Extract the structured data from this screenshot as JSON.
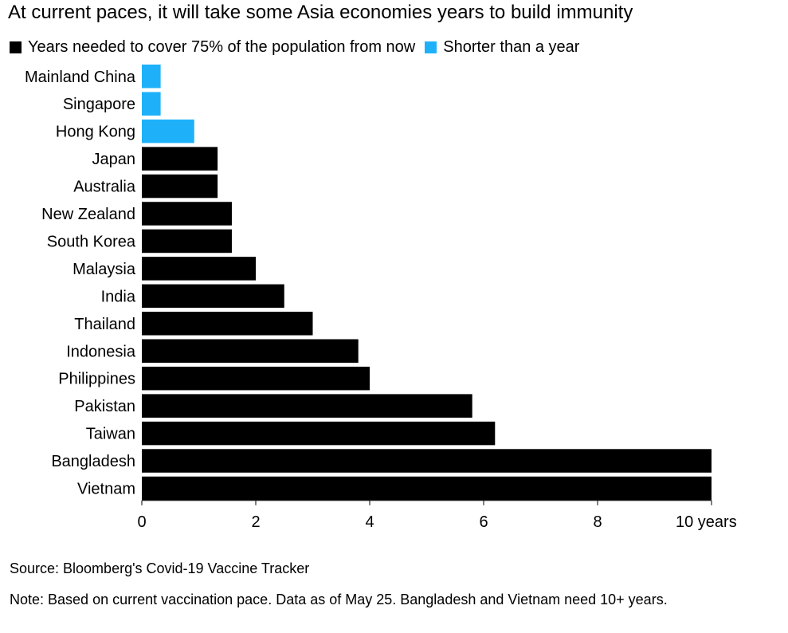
{
  "chart_data": {
    "type": "bar",
    "orientation": "horizontal",
    "title": "At current paces, it will take some Asia economies years to build immunity",
    "legend": [
      {
        "label": "Years needed to cover 75% of the population from now",
        "color": "#000000"
      },
      {
        "label": "Shorter than a year",
        "color": "#1eb1fa"
      }
    ],
    "categories": [
      "Mainland China",
      "Singapore",
      "Hong Kong",
      "Japan",
      "Australia",
      "New Zealand",
      "South Korea",
      "Malaysia",
      "India",
      "Thailand",
      "Indonesia",
      "Philippines",
      "Pakistan",
      "Taiwan",
      "Bangladesh",
      "Vietnam"
    ],
    "values": [
      0.33,
      0.33,
      0.92,
      1.33,
      1.33,
      1.58,
      1.58,
      2.0,
      2.5,
      3.0,
      3.8,
      4.0,
      5.8,
      6.2,
      10,
      10
    ],
    "groups": [
      "short",
      "short",
      "short",
      "long",
      "long",
      "long",
      "long",
      "long",
      "long",
      "long",
      "long",
      "long",
      "long",
      "long",
      "long",
      "long"
    ],
    "xlim": [
      0,
      10
    ],
    "xticks": [
      0,
      2,
      4,
      6,
      8,
      10
    ],
    "xtick_labels": [
      "0",
      "2",
      "4",
      "6",
      "8",
      "10 years"
    ],
    "xlabel": "",
    "ylabel": "",
    "grid": false
  },
  "footer": {
    "source": "Source: Bloomberg's Covid-19 Vaccine Tracker",
    "note": "Note: Based on current vaccination pace. Data as of May 25. Bangladesh and Vietnam need 10+ years."
  },
  "colors": {
    "long": "#000000",
    "short": "#1eb1fa",
    "axis": "#000000"
  }
}
